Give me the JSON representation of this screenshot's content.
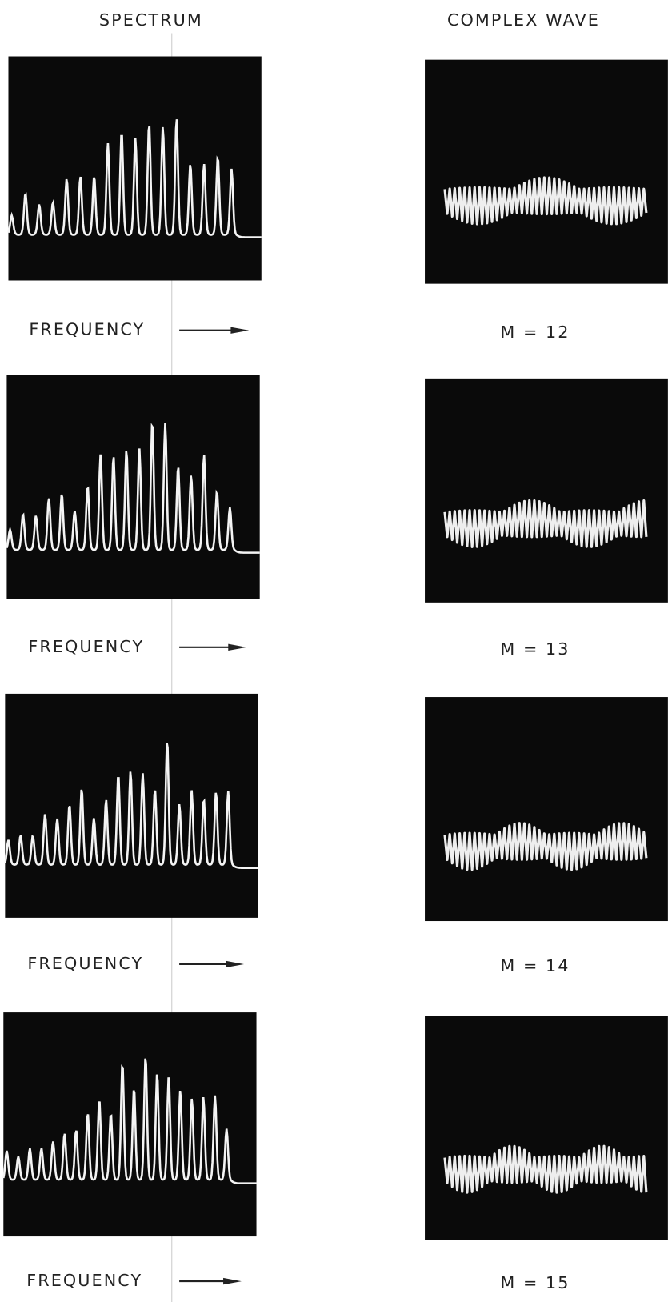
{
  "headers": {
    "spectrum": "SPECTRUM",
    "wave": "COMPLEX WAVE"
  },
  "rows": [
    {
      "axis_label": "FREQUENCY",
      "m_label": "M = 12"
    },
    {
      "axis_label": "FREQUENCY",
      "m_label": "M = 13"
    },
    {
      "axis_label": "FREQUENCY",
      "m_label": "M = 14"
    },
    {
      "axis_label": "FREQUENCY",
      "m_label": "M = 15"
    }
  ]
}
